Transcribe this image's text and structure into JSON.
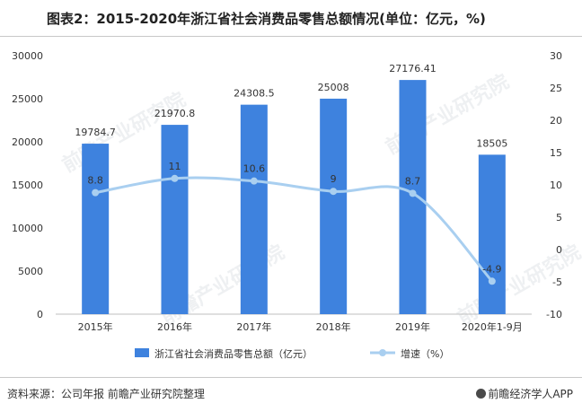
{
  "title": "图表2：2015-2020年浙江省社会消费品零售总额情况(单位：亿元，%)",
  "source": "资料来源：公司年报 前瞻产业研究院整理",
  "brand": "前瞻经济学人APP",
  "watermark": "前瞻产业研究院",
  "colors": {
    "bar": "#3e82de",
    "line": "#a9cff0",
    "axis": "#bfbfbf",
    "text": "#333333"
  },
  "chart_data": {
    "type": "bar",
    "categories": [
      "2015年",
      "2016年",
      "2017年",
      "2018年",
      "2019年",
      "2020年1-9月"
    ],
    "series": [
      {
        "name": "浙江省社会消费品零售总额（亿元）",
        "type": "bar",
        "axis": "left",
        "values": [
          19784.7,
          21970.8,
          24308.5,
          25008,
          27176.41,
          18505
        ],
        "labels": [
          "19784.7",
          "21970.8",
          "24308.5",
          "25008",
          "27176.41",
          "18505"
        ]
      },
      {
        "name": "增速（%）",
        "type": "line",
        "axis": "right",
        "values": [
          8.8,
          11,
          10.6,
          9,
          8.7,
          -4.9
        ],
        "labels": [
          "8.8",
          "11",
          "10.6",
          "9",
          "8.7",
          "-4.9"
        ]
      }
    ],
    "y_left": {
      "min": 0,
      "max": 30000,
      "ticks": [
        0,
        5000,
        10000,
        15000,
        20000,
        25000,
        30000
      ]
    },
    "y_right": {
      "min": -10,
      "max": 30,
      "ticks": [
        -10,
        -5,
        0,
        5,
        10,
        15,
        20,
        25,
        30
      ]
    },
    "legend_position": "bottom",
    "grid": false
  }
}
